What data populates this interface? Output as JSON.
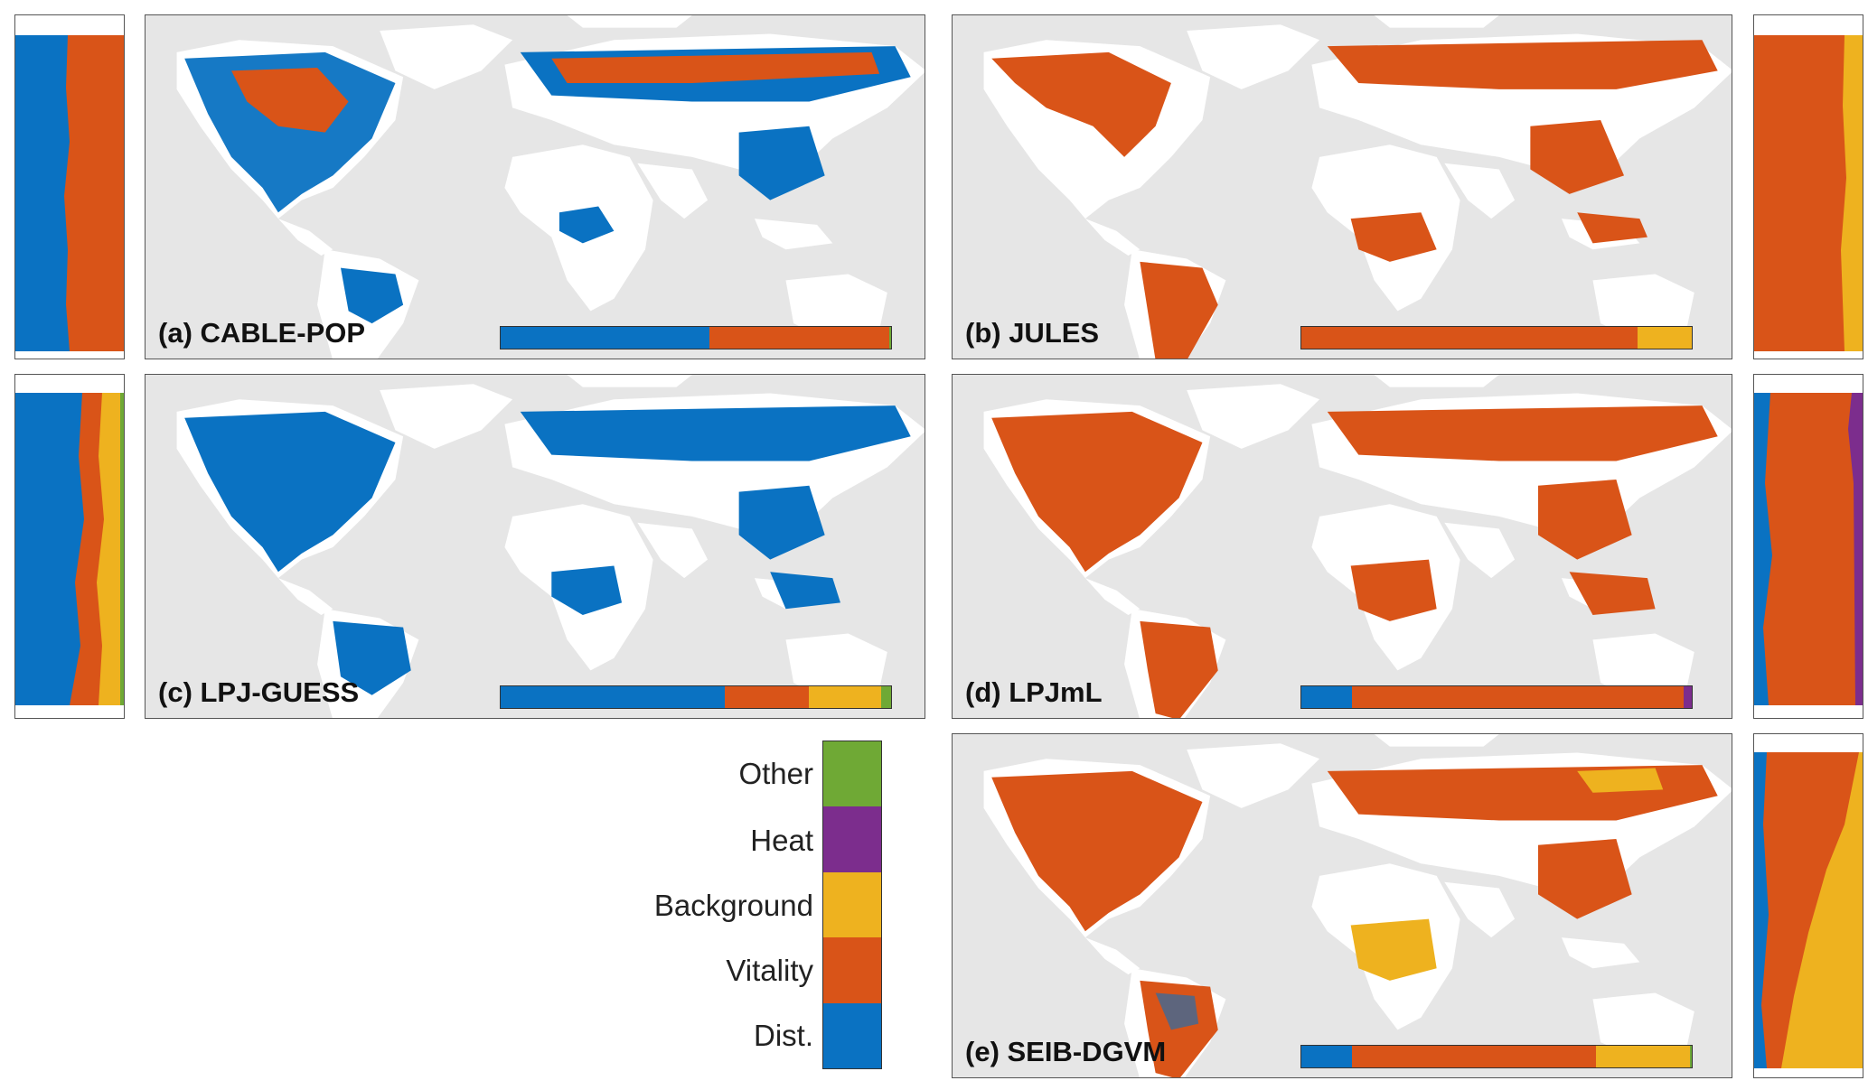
{
  "colors": {
    "dist": "#0a72c2",
    "vitality": "#d95418",
    "background": "#eeb21f",
    "heat": "#7c2d8d",
    "other": "#6fa935",
    "ocean": "#e6e6e6",
    "land": "#ffffff"
  },
  "legend": {
    "items": [
      "Other",
      "Heat",
      "Background",
      "Vitality",
      "Dist."
    ]
  },
  "panels": [
    {
      "id": "a",
      "label": "(a) CABLE-POP",
      "fractions": {
        "dist": 0.535,
        "vitality": 0.46,
        "background": 0.0,
        "heat": 0.0,
        "other": 0.005
      }
    },
    {
      "id": "b",
      "label": "(b) JULES",
      "fractions": {
        "dist": 0.0,
        "vitality": 0.86,
        "background": 0.14,
        "heat": 0.0,
        "other": 0.0
      }
    },
    {
      "id": "c",
      "label": "(c) LPJ-GUESS",
      "fractions": {
        "dist": 0.575,
        "vitality": 0.215,
        "background": 0.185,
        "heat": 0.0,
        "other": 0.025
      }
    },
    {
      "id": "d",
      "label": "(d) LPJmL",
      "fractions": {
        "dist": 0.13,
        "vitality": 0.85,
        "background": 0.0,
        "heat": 0.02,
        "other": 0.0
      }
    },
    {
      "id": "e",
      "label": "(e) SEIB-DGVM",
      "fractions": {
        "dist": 0.13,
        "vitality": 0.625,
        "background": 0.24,
        "heat": 0.0,
        "other": 0.005
      }
    }
  ]
}
